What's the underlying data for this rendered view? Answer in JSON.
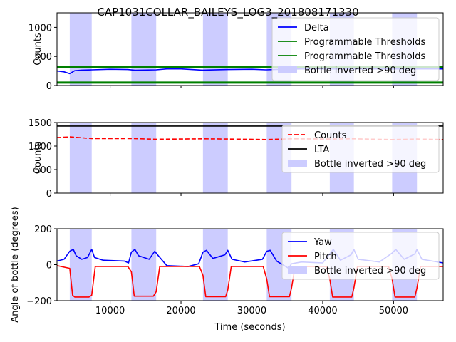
{
  "chart_data": {
    "type": "line",
    "title": "CAP1031COLLAR_BAILEYS_LOG3_201808171330",
    "xlabel": "Time (seconds)",
    "xlim": [
      2500,
      57000
    ],
    "xticks": [
      10000,
      20000,
      30000,
      40000,
      50000
    ],
    "xtick_labels": [
      "10000",
      "20000",
      "30000",
      "40000",
      "50000"
    ],
    "inverted_spans": [
      [
        4300,
        7400
      ],
      [
        13000,
        16500
      ],
      [
        23100,
        26600
      ],
      [
        32100,
        35600
      ],
      [
        41000,
        44400
      ],
      [
        49800,
        53300
      ]
    ],
    "panels": [
      {
        "ylabel": "Counts",
        "ylim": [
          0,
          1250
        ],
        "yticks": [
          0,
          500,
          1000
        ],
        "ytick_labels": [
          "0",
          "500",
          "1000"
        ],
        "hlines": [
          {
            "y": 320,
            "color": "#008000"
          },
          {
            "y": 50,
            "color": "#008000"
          }
        ],
        "series": [
          {
            "name": "Delta",
            "color": "#0000ff",
            "style": "solid",
            "points": [
              [
                2500,
                250
              ],
              [
                3500,
                235
              ],
              [
                4300,
                205
              ],
              [
                5000,
                255
              ],
              [
                6000,
                265
              ],
              [
                7400,
                270
              ],
              [
                10000,
                280
              ],
              [
                12500,
                275
              ],
              [
                13500,
                262
              ],
              [
                16500,
                270
              ],
              [
                18000,
                285
              ],
              [
                20000,
                285
              ],
              [
                23000,
                265
              ],
              [
                26600,
                275
              ],
              [
                30000,
                280
              ],
              [
                32000,
                270
              ],
              [
                34000,
                278
              ],
              [
                37000,
                285
              ],
              [
                40000,
                285
              ],
              [
                44000,
                285
              ],
              [
                48000,
                285
              ],
              [
                52000,
                285
              ],
              [
                57000,
                285
              ]
            ]
          },
          {
            "name": "Programmable Thresholds",
            "color": "#008000",
            "style": "solid",
            "points": [
              [
                2500,
                320
              ],
              [
                57000,
                320
              ]
            ]
          },
          {
            "name": "Programmable Thresholds",
            "color": "#008000",
            "style": "solid",
            "points": [
              [
                2500,
                50
              ],
              [
                57000,
                50
              ]
            ]
          }
        ],
        "legend": [
          "Delta",
          "Programmable Thresholds",
          "Programmable Thresholds",
          "Bottle inverted >90 deg"
        ]
      },
      {
        "ylabel": "Counts",
        "ylim": [
          0,
          1500
        ],
        "yticks": [
          0,
          500,
          1000,
          1500
        ],
        "ytick_labels": [
          "0",
          "500",
          "1000",
          "1500"
        ],
        "series": [
          {
            "name": "Counts",
            "color": "#ff0000",
            "style": "dashed",
            "points": [
              [
                2500,
                1180
              ],
              [
                4300,
                1195
              ],
              [
                7400,
                1160
              ],
              [
                13000,
                1160
              ],
              [
                16500,
                1145
              ],
              [
                23100,
                1155
              ],
              [
                26600,
                1150
              ],
              [
                32100,
                1140
              ],
              [
                35600,
                1155
              ],
              [
                41000,
                1150
              ],
              [
                44400,
                1155
              ],
              [
                49800,
                1140
              ],
              [
                53300,
                1150
              ],
              [
                57000,
                1140
              ]
            ]
          },
          {
            "name": "LTA",
            "color": "#000000",
            "style": "solid",
            "points": [
              [
                2500,
                1425
              ],
              [
                57000,
                1425
              ]
            ]
          }
        ],
        "legend": [
          "Counts",
          "LTA",
          "Bottle inverted >90 deg"
        ]
      },
      {
        "ylabel": "Angle of bottle (degrees)",
        "ylim": [
          -200,
          200
        ],
        "yticks": [
          -200,
          0,
          200
        ],
        "ytick_labels": [
          "−200",
          "0",
          "200"
        ],
        "series": [
          {
            "name": "Yaw",
            "color": "#0000ff",
            "style": "solid",
            "points": [
              [
                2500,
                20
              ],
              [
                3500,
                30
              ],
              [
                4300,
                75
              ],
              [
                4800,
                85
              ],
              [
                5200,
                50
              ],
              [
                6000,
                30
              ],
              [
                6800,
                40
              ],
              [
                7400,
                85
              ],
              [
                7800,
                40
              ],
              [
                9000,
                25
              ],
              [
                12000,
                20
              ],
              [
                12600,
                10
              ],
              [
                13000,
                70
              ],
              [
                13500,
                85
              ],
              [
                14000,
                50
              ],
              [
                15500,
                30
              ],
              [
                16300,
                75
              ],
              [
                16800,
                50
              ],
              [
                18000,
                -5
              ],
              [
                21000,
                -10
              ],
              [
                22500,
                5
              ],
              [
                23100,
                70
              ],
              [
                23600,
                80
              ],
              [
                24500,
                35
              ],
              [
                26200,
                55
              ],
              [
                26600,
                80
              ],
              [
                27200,
                30
              ],
              [
                29000,
                15
              ],
              [
                31500,
                30
              ],
              [
                32100,
                75
              ],
              [
                32600,
                80
              ],
              [
                33500,
                20
              ],
              [
                35200,
                -20
              ],
              [
                35600,
                5
              ],
              [
                37000,
                15
              ],
              [
                40000,
                10
              ],
              [
                41000,
                60
              ],
              [
                41500,
                85
              ],
              [
                42500,
                25
              ],
              [
                44000,
                55
              ],
              [
                44400,
                85
              ],
              [
                45000,
                30
              ],
              [
                48000,
                15
              ],
              [
                49800,
                65
              ],
              [
                50300,
                85
              ],
              [
                51500,
                30
              ],
              [
                53000,
                60
              ],
              [
                53300,
                85
              ],
              [
                54000,
                30
              ],
              [
                57000,
                10
              ]
            ]
          },
          {
            "name": "Pitch",
            "color": "#ff0000",
            "style": "solid",
            "points": [
              [
                2500,
                -5
              ],
              [
                4300,
                -20
              ],
              [
                4700,
                -170
              ],
              [
                5000,
                -180
              ],
              [
                7000,
                -180
              ],
              [
                7400,
                -170
              ],
              [
                7900,
                -10
              ],
              [
                12500,
                -10
              ],
              [
                13000,
                -40
              ],
              [
                13400,
                -175
              ],
              [
                16100,
                -175
              ],
              [
                16500,
                -150
              ],
              [
                17000,
                -10
              ],
              [
                22600,
                -10
              ],
              [
                23100,
                -60
              ],
              [
                23500,
                -178
              ],
              [
                26300,
                -178
              ],
              [
                26600,
                -140
              ],
              [
                27100,
                -10
              ],
              [
                31600,
                -10
              ],
              [
                32100,
                -80
              ],
              [
                32500,
                -178
              ],
              [
                35300,
                -178
              ],
              [
                35600,
                -130
              ],
              [
                36100,
                -10
              ],
              [
                40500,
                -10
              ],
              [
                41000,
                -80
              ],
              [
                41400,
                -180
              ],
              [
                44100,
                -180
              ],
              [
                44400,
                -130
              ],
              [
                44900,
                -10
              ],
              [
                49300,
                -10
              ],
              [
                49800,
                -80
              ],
              [
                50200,
                -180
              ],
              [
                53000,
                -180
              ],
              [
                53300,
                -130
              ],
              [
                53800,
                -10
              ],
              [
                57000,
                -10
              ]
            ]
          }
        ],
        "legend": [
          "Yaw",
          "Pitch",
          "Bottle inverted >90 deg"
        ]
      }
    ],
    "legend_placement": "upper right"
  }
}
